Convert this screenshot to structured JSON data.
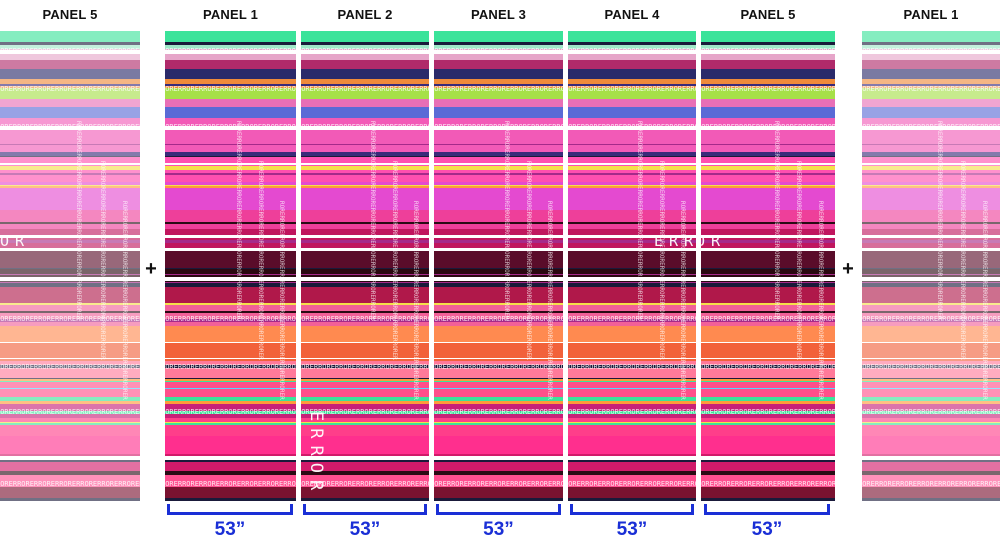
{
  "panels": [
    {
      "id": "left-ghost",
      "label": "PANEL 5",
      "faded": true
    },
    {
      "id": "p1",
      "label": "PANEL 1",
      "faded": false
    },
    {
      "id": "p2",
      "label": "PANEL 2",
      "faded": false
    },
    {
      "id": "p3",
      "label": "PANEL 3",
      "faded": false
    },
    {
      "id": "p4",
      "label": "PANEL 4",
      "faded": false
    },
    {
      "id": "p5",
      "label": "PANEL 5",
      "faded": false
    },
    {
      "id": "right-ghost",
      "label": "PANEL 1",
      "faded": true
    }
  ],
  "plus_sign": "+",
  "panel_width_label": "53”",
  "overlay_word": "ERROR",
  "overlay_tiny": "RORERRORERRORERRORERRORERRORERRORERRORERRORERRORERRORERRORERROR",
  "colors": {
    "bracket": "#1a2fd6",
    "text": "#111111"
  }
}
